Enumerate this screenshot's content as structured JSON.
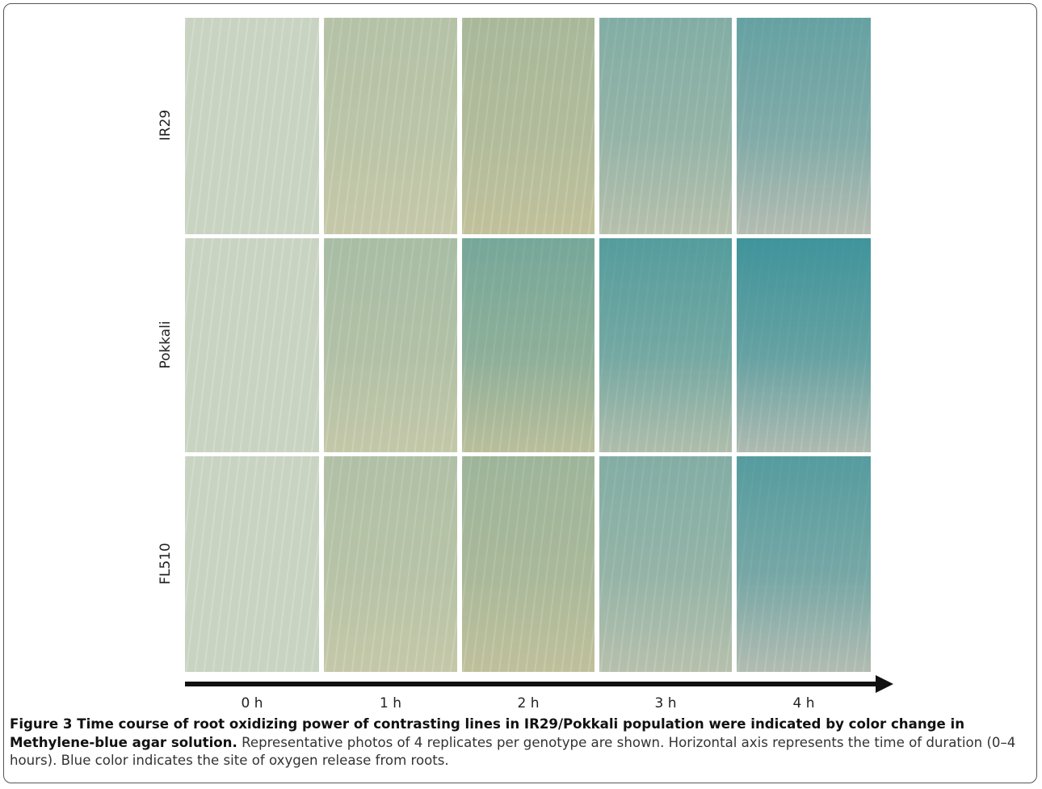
{
  "figure": {
    "row_labels": [
      "IR29",
      "Pokkali",
      "FL510"
    ],
    "column_labels": [
      "0 h",
      "1 h",
      "2 h",
      "3 h",
      "4 h"
    ],
    "caption": {
      "label": "Figure 3",
      "title": "Time course of root oxidizing power of contrasting lines in IR29/Pokkali population were indicated by color change in Methylene-blue agar solution.",
      "text": "Representative photos of 4 replicates per genotype are shown. Horizontal axis represents the time of duration (0–4 hours). Blue color indicates the site of oxygen release from roots."
    }
  }
}
